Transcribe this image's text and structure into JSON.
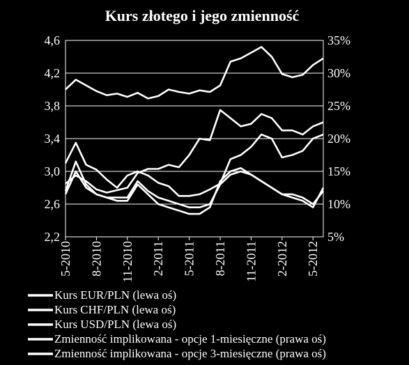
{
  "chart_data": {
    "type": "line",
    "title": "Kurs złotego i jego zmienność",
    "x_ticks": [
      "5-2010",
      "8-2010",
      "11-2010",
      "2-2011",
      "5-2011",
      "8-2011",
      "11-2011",
      "2-2012",
      "5-2012"
    ],
    "x_range": [
      "2010-05",
      "2012-06"
    ],
    "y_left": {
      "range": [
        2.2,
        4.6
      ],
      "ticks": [
        "2,2",
        "2,6",
        "3,0",
        "3,4",
        "3,8",
        "4,2",
        "4,6"
      ]
    },
    "y_right": {
      "range": [
        5,
        35
      ],
      "unit": "%",
      "ticks": [
        "5%",
        "10%",
        "15%",
        "20%",
        "25%",
        "30%",
        "35%"
      ]
    },
    "grid": true,
    "legend_position": "bottom",
    "series": [
      {
        "name": "Kurs EUR/PLN (lewa oś)",
        "axis": "left",
        "color": "#ffffff",
        "x": [
          "2010-05",
          "2010-06",
          "2010-07",
          "2010-08",
          "2010-09",
          "2010-10",
          "2010-11",
          "2010-12",
          "2011-01",
          "2011-02",
          "2011-03",
          "2011-04",
          "2011-05",
          "2011-06",
          "2011-07",
          "2011-08",
          "2011-09",
          "2011-10",
          "2011-11",
          "2011-12",
          "2012-01",
          "2012-02",
          "2012-03",
          "2012-04",
          "2012-05",
          "2012-06"
        ],
        "y": [
          4.0,
          4.12,
          4.05,
          3.98,
          3.93,
          3.95,
          3.91,
          3.96,
          3.89,
          3.92,
          4.0,
          3.97,
          3.95,
          3.99,
          3.97,
          4.05,
          4.34,
          4.38,
          4.45,
          4.52,
          4.4,
          4.19,
          4.15,
          4.18,
          4.3,
          4.38
        ]
      },
      {
        "name": "Kurs CHF/PLN (lewa oś)",
        "axis": "left",
        "color": "#ffffff",
        "x": [
          "2010-05",
          "2010-06",
          "2010-07",
          "2010-08",
          "2010-09",
          "2010-10",
          "2010-11",
          "2010-12",
          "2011-01",
          "2011-02",
          "2011-03",
          "2011-04",
          "2011-05",
          "2011-06",
          "2011-07",
          "2011-08",
          "2011-09",
          "2011-10",
          "2011-11",
          "2011-12",
          "2012-01",
          "2012-02",
          "2012-03",
          "2012-04",
          "2012-05",
          "2012-06"
        ],
        "y": [
          2.85,
          2.95,
          2.88,
          2.78,
          2.74,
          2.77,
          2.8,
          2.98,
          3.03,
          3.03,
          3.08,
          3.05,
          3.2,
          3.4,
          3.38,
          3.75,
          3.65,
          3.55,
          3.58,
          3.7,
          3.65,
          3.5,
          3.5,
          3.45,
          3.55,
          3.6
        ]
      },
      {
        "name": "Kurs USD/PLN (lewa oś)",
        "axis": "left",
        "color": "#ffffff",
        "x": [
          "2010-05",
          "2010-06",
          "2010-07",
          "2010-08",
          "2010-09",
          "2010-10",
          "2010-11",
          "2010-12",
          "2011-01",
          "2011-02",
          "2011-03",
          "2011-04",
          "2011-05",
          "2011-06",
          "2011-07",
          "2011-08",
          "2011-09",
          "2011-10",
          "2011-11",
          "2011-12",
          "2012-01",
          "2012-02",
          "2012-03",
          "2012-04",
          "2012-05",
          "2012-06"
        ],
        "y": [
          3.1,
          3.35,
          3.08,
          3.02,
          2.9,
          2.8,
          2.95,
          3.0,
          2.95,
          2.86,
          2.82,
          2.7,
          2.7,
          2.72,
          2.78,
          2.85,
          3.15,
          3.2,
          3.3,
          3.45,
          3.4,
          3.17,
          3.2,
          3.25,
          3.4,
          3.45
        ]
      },
      {
        "name": "Zmienność implikowana - opcje 1-miesięczne  (prawa oś)",
        "axis": "right",
        "color": "#ffffff",
        "x": [
          "2010-05",
          "2010-06",
          "2010-07",
          "2010-08",
          "2010-09",
          "2010-10",
          "2010-11",
          "2010-12",
          "2011-01",
          "2011-02",
          "2011-03",
          "2011-04",
          "2011-05",
          "2011-06",
          "2011-07",
          "2011-08",
          "2011-09",
          "2011-10",
          "2011-11",
          "2011-12",
          "2012-01",
          "2012-02",
          "2012-03",
          "2012-04",
          "2012-05",
          "2012-06"
        ],
        "y": [
          12.0,
          16.5,
          13.0,
          11.5,
          11.0,
          10.5,
          10.5,
          13.0,
          11.5,
          10.0,
          9.5,
          9.0,
          8.5,
          8.5,
          9.5,
          13.5,
          15.0,
          15.5,
          14.5,
          13.5,
          12.5,
          11.5,
          11.0,
          10.5,
          9.5,
          12.5
        ]
      },
      {
        "name": "Zmienność implikowana - opcje 3-miesięczne (prawa oś)",
        "axis": "right",
        "color": "#ffffff",
        "x": [
          "2010-05",
          "2010-06",
          "2010-07",
          "2010-08",
          "2010-09",
          "2010-10",
          "2010-11",
          "2010-12",
          "2011-01",
          "2011-02",
          "2011-03",
          "2011-04",
          "2011-05",
          "2011-06",
          "2011-07",
          "2011-08",
          "2011-09",
          "2011-10",
          "2011-11",
          "2011-12",
          "2012-01",
          "2012-02",
          "2012-03",
          "2012-04",
          "2012-05",
          "2012-06"
        ],
        "y": [
          11.5,
          15.0,
          12.5,
          11.5,
          11.0,
          11.0,
          11.0,
          13.5,
          12.0,
          11.0,
          10.5,
          10.0,
          9.5,
          9.5,
          10.0,
          13.0,
          14.5,
          15.0,
          14.5,
          13.5,
          12.5,
          11.5,
          11.5,
          11.0,
          10.0,
          12.0
        ]
      }
    ]
  }
}
